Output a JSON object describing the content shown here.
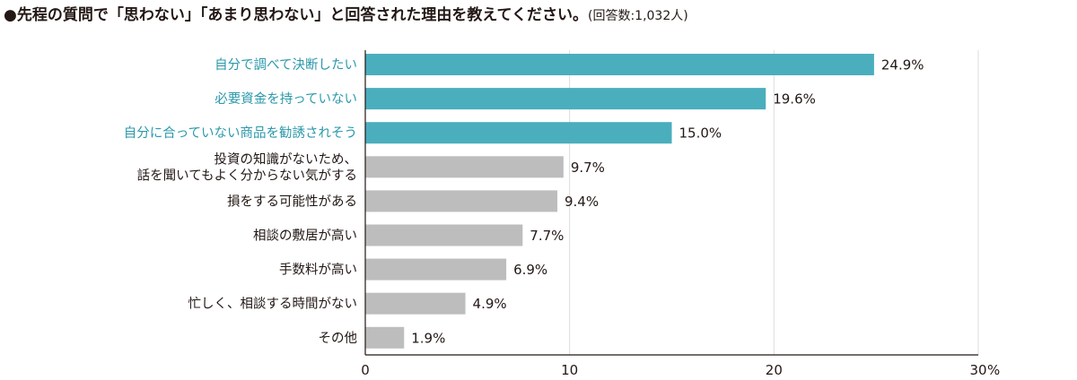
{
  "title": {
    "main": "●先程の質問で「思わない」「あまり思わない」と回答された理由を教えてください。",
    "note": "(回答数:1,032人)"
  },
  "colors": {
    "highlight": "#4aaebd",
    "normal": "#bdbdbd",
    "grid": "#dcdcdc",
    "axis": "#231815",
    "highlight_text": "#2b98ab",
    "text": "#231815"
  },
  "chart_data": {
    "type": "bar",
    "orientation": "horizontal",
    "categories": [
      [
        "自分で調べて決断したい"
      ],
      [
        "必要資金を持っていない"
      ],
      [
        "自分に合っていない商品を勧誘されそう"
      ],
      [
        "投資の知識がないため、",
        "話を聞いてもよく分からない気がする"
      ],
      [
        "損をする可能性がある"
      ],
      [
        "相談の敷居が高い"
      ],
      [
        "手数料が高い"
      ],
      [
        "忙しく、相談する時間がない"
      ],
      [
        "その他"
      ]
    ],
    "values": [
      24.9,
      19.6,
      15.0,
      9.7,
      9.4,
      7.7,
      6.9,
      4.9,
      1.9
    ],
    "value_labels": [
      "24.9%",
      "19.6%",
      "15.0%",
      "9.7%",
      "9.4%",
      "7.7%",
      "6.9%",
      "4.9%",
      "1.9%"
    ],
    "highlighted": [
      true,
      true,
      true,
      false,
      false,
      false,
      false,
      false,
      false
    ],
    "xlim": [
      0,
      30
    ],
    "xticks": [
      0,
      10,
      20,
      30
    ],
    "xtick_labels": [
      "0",
      "10",
      "20",
      "30"
    ],
    "x_unit": "%",
    "grid": "vertical"
  }
}
